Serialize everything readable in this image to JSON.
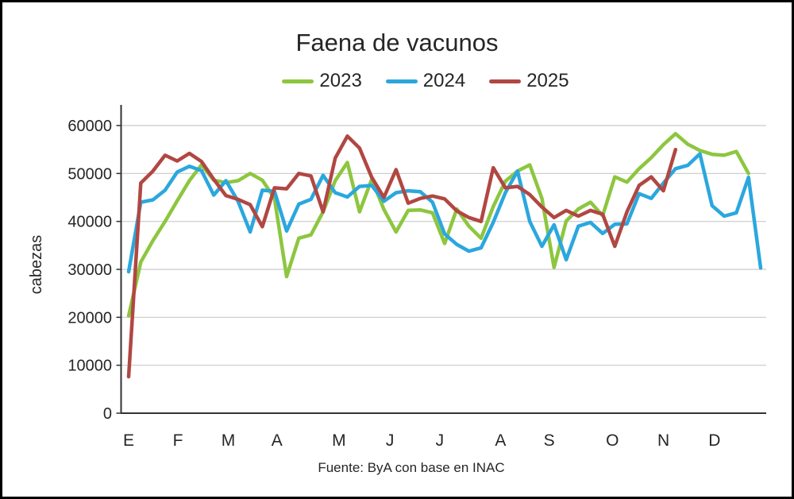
{
  "chart_data": {
    "type": "line",
    "title": "Faena de vacunos",
    "ylabel": "cabezas",
    "xlabel": "",
    "source_note": "Fuente: ByA con base en INAC",
    "ylim": [
      0,
      60000
    ],
    "y_ticks": [
      0,
      10000,
      20000,
      30000,
      40000,
      50000,
      60000
    ],
    "x_unit": "week",
    "n_weeks": 53,
    "grid": true,
    "legend_position": "top",
    "grid_color": "#c9c9c9",
    "axis_color": "#333333",
    "text_color": "#262626",
    "month_ticks": [
      {
        "label": "E",
        "week": 1.0
      },
      {
        "label": "F",
        "week": 5.05
      },
      {
        "label": "M",
        "week": 9.2
      },
      {
        "label": "A",
        "week": 13.2
      },
      {
        "label": "M",
        "week": 18.3
      },
      {
        "label": "J",
        "week": 22.5
      },
      {
        "label": "J",
        "week": 26.6
      },
      {
        "label": "A",
        "week": 31.6
      },
      {
        "label": "S",
        "week": 35.6
      },
      {
        "label": "O",
        "week": 40.8
      },
      {
        "label": "N",
        "week": 45.0
      },
      {
        "label": "D",
        "week": 49.2
      }
    ],
    "series": [
      {
        "name": "2023",
        "color": "#8dc63f",
        "start_week": 1,
        "values": [
          20300,
          31500,
          36000,
          40000,
          44300,
          48500,
          51800,
          48600,
          48100,
          48500,
          50000,
          48600,
          44800,
          28500,
          36500,
          37200,
          42000,
          48500,
          52300,
          42000,
          48800,
          42500,
          37800,
          42300,
          42400,
          41800,
          35400,
          42600,
          39000,
          36500,
          43100,
          48400,
          50500,
          51800,
          44800,
          30400,
          40100,
          42600,
          44000,
          41200,
          49300,
          48200,
          51000,
          53300,
          56000,
          58300,
          56100,
          54800,
          54000,
          53800,
          54600,
          50000
        ]
      },
      {
        "name": "2024",
        "color": "#2ba7de",
        "start_week": 1,
        "values": [
          29500,
          44000,
          44500,
          46500,
          50300,
          51500,
          50600,
          45500,
          48500,
          44200,
          37800,
          46500,
          46300,
          38000,
          43600,
          44600,
          49600,
          46000,
          45100,
          47300,
          47500,
          44200,
          46000,
          46400,
          46200,
          44000,
          37400,
          35200,
          33800,
          34500,
          39800,
          46000,
          50500,
          40000,
          34800,
          39300,
          32000,
          39000,
          39800,
          37500,
          39400,
          39500,
          45800,
          44800,
          48000,
          51000,
          51700,
          54100,
          43300,
          41100,
          41800,
          49200,
          30300
        ]
      },
      {
        "name": "2025",
        "color": "#b14742",
        "start_week": 1,
        "values": [
          7600,
          48000,
          50500,
          53800,
          52600,
          54200,
          52500,
          48800,
          45400,
          44600,
          43500,
          38900,
          47000,
          46800,
          50000,
          49500,
          42000,
          53200,
          57800,
          55300,
          49200,
          45000,
          50800,
          43800,
          44800,
          45300,
          44700,
          42200,
          40800,
          40000,
          51200,
          47000,
          47300,
          45600,
          43000,
          40800,
          42300,
          41100,
          42300,
          41500,
          34800,
          42000,
          47500,
          49300,
          46400,
          55000
        ]
      }
    ]
  }
}
